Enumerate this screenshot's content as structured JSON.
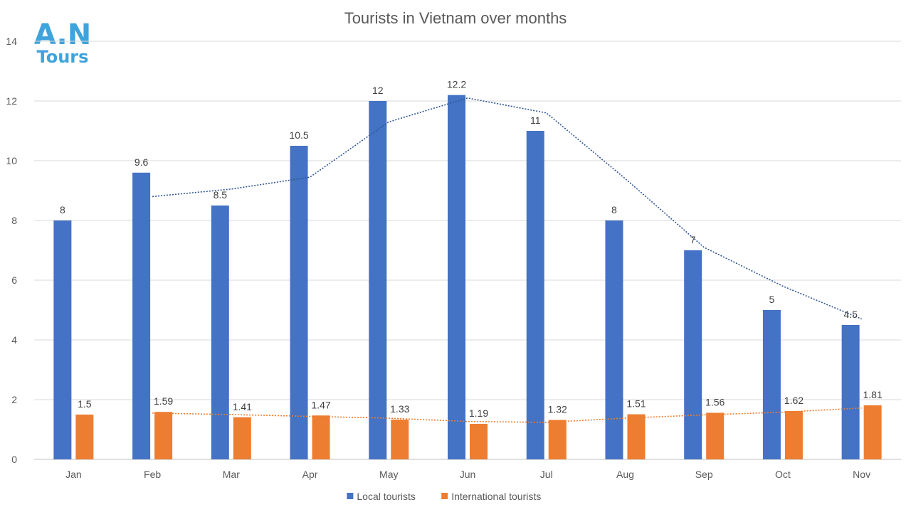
{
  "chart_data": {
    "type": "bar",
    "title": "Tourists in Vietnam over months",
    "categories": [
      "Jan",
      "Feb",
      "Mar",
      "Apr",
      "May",
      "Jun",
      "Jul",
      "Aug",
      "Sep",
      "Oct",
      "Nov"
    ],
    "series": [
      {
        "name": "Local tourists",
        "color": "#4472c4",
        "values": [
          8,
          9.6,
          8.5,
          10.5,
          12,
          12.2,
          11,
          8,
          7,
          5,
          4.5
        ],
        "labels": [
          "8",
          "9.6",
          "8.5",
          "10.5",
          "12",
          "12.2",
          "11",
          "8",
          "7",
          "5",
          "4.5"
        ]
      },
      {
        "name": "International tourists",
        "color": "#ed7d31",
        "values": [
          1.5,
          1.59,
          1.41,
          1.47,
          1.33,
          1.19,
          1.32,
          1.51,
          1.56,
          1.62,
          1.81
        ],
        "labels": [
          "1.5",
          "1.59",
          "1.41",
          "1.47",
          "1.33",
          "1.19",
          "1.32",
          "1.51",
          "1.56",
          "1.62",
          "1.81"
        ]
      }
    ],
    "trendlines": [
      {
        "series": "Local tourists",
        "style": "dotted",
        "color": "#2f5597",
        "from_category_index": 1,
        "values": [
          8.8,
          9.05,
          9.45,
          11.3,
          12.1,
          11.6,
          9.4,
          7.1,
          5.8,
          4.7
        ]
      },
      {
        "series": "International tourists",
        "style": "dotted",
        "color": "#ed7d31",
        "from_category_index": 1,
        "values": [
          1.55,
          1.5,
          1.44,
          1.38,
          1.27,
          1.24,
          1.38,
          1.49,
          1.58,
          1.72
        ]
      }
    ],
    "ylim": [
      0,
      14
    ],
    "yticks": [
      "0",
      "2",
      "4",
      "6",
      "8",
      "10",
      "12",
      "14"
    ],
    "grid": true,
    "legend_position": "bottom"
  },
  "logo": {
    "line1": "A.N",
    "line2": "Tours",
    "color": "#3fa3dc"
  }
}
